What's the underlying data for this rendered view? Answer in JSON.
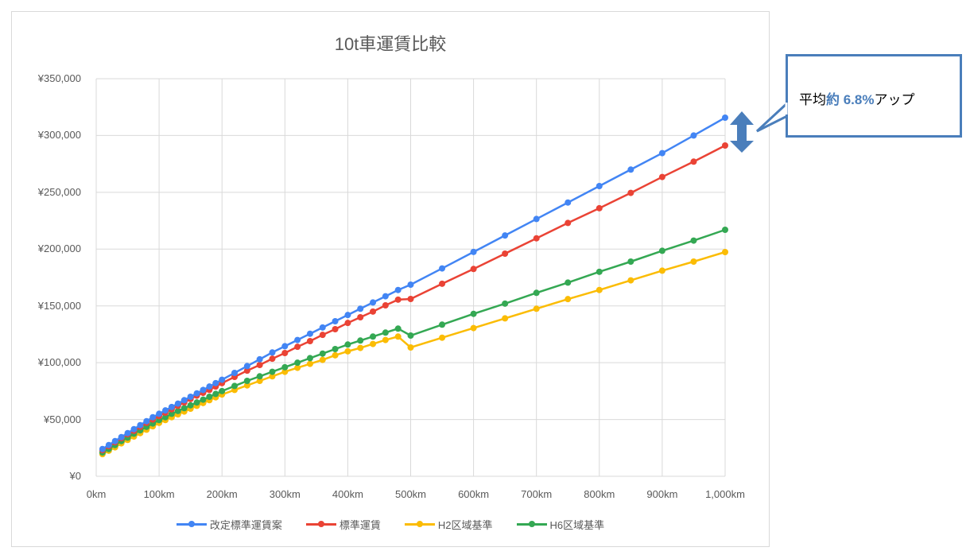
{
  "chart_data": {
    "type": "line",
    "title": "10t車運賃比較",
    "xlabel": "",
    "ylabel": "",
    "xlim": [
      0,
      1000
    ],
    "ylim": [
      0,
      350000
    ],
    "x_tick_labels": [
      "0km",
      "100km",
      "200km",
      "300km",
      "400km",
      "500km",
      "600km",
      "700km",
      "800km",
      "900km",
      "1,000km"
    ],
    "y_tick_labels": [
      "¥0",
      "¥50,000",
      "¥100,000",
      "¥150,000",
      "¥200,000",
      "¥250,000",
      "¥300,000",
      "¥350,000"
    ],
    "grid": true,
    "legend_position": "bottom",
    "x": [
      10,
      20,
      30,
      40,
      50,
      60,
      70,
      80,
      90,
      100,
      110,
      120,
      130,
      140,
      150,
      160,
      170,
      180,
      190,
      200,
      220,
      240,
      260,
      280,
      300,
      320,
      340,
      360,
      380,
      400,
      420,
      440,
      460,
      480,
      500,
      550,
      600,
      650,
      700,
      750,
      800,
      850,
      900,
      950,
      1000
    ],
    "series": [
      {
        "name": "改定標準運賃案",
        "color": "#4285f4",
        "values": [
          24000,
          27500,
          31000,
          34500,
          38000,
          41500,
          45000,
          48500,
          52000,
          55000,
          58000,
          61000,
          64000,
          67000,
          70000,
          73000,
          76000,
          79000,
          82000,
          85000,
          91000,
          97000,
          103000,
          109000,
          114500,
          120000,
          125500,
          131000,
          136500,
          142000,
          147500,
          153000,
          158500,
          164000,
          168700,
          183000,
          197500,
          212000,
          226500,
          241000,
          255500,
          270000,
          284500,
          300000,
          315700
        ]
      },
      {
        "name": "標準運賃",
        "color": "#ea4335",
        "values": [
          23000,
          26500,
          30000,
          33500,
          37000,
          40000,
          43500,
          47000,
          50000,
          53000,
          56000,
          59000,
          62000,
          65000,
          68000,
          71000,
          73500,
          76000,
          79000,
          82000,
          87500,
          93000,
          98000,
          103500,
          108500,
          114000,
          119000,
          124500,
          129500,
          135000,
          140000,
          145000,
          150500,
          155500,
          156100,
          169500,
          182500,
          196000,
          209500,
          223000,
          236000,
          249500,
          263500,
          277000,
          291200
        ]
      },
      {
        "name": "H2区域基準",
        "color": "#fbbc04",
        "values": [
          19500,
          22500,
          25500,
          29000,
          32000,
          35000,
          38000,
          41000,
          44000,
          47000,
          49500,
          52000,
          54500,
          57000,
          59500,
          62000,
          64500,
          67000,
          69500,
          72000,
          76000,
          80000,
          84000,
          88000,
          92000,
          95500,
          99000,
          102500,
          106500,
          110000,
          113000,
          116500,
          120000,
          123000,
          113400,
          122000,
          130500,
          139000,
          147500,
          156000,
          164000,
          172500,
          181000,
          189000,
          197400
        ]
      },
      {
        "name": "H6区域基準",
        "color": "#34a853",
        "values": [
          21000,
          24000,
          27500,
          31000,
          34000,
          37500,
          40500,
          43500,
          46500,
          49500,
          52000,
          55000,
          57500,
          60000,
          62500,
          65000,
          67500,
          70000,
          72500,
          75000,
          79500,
          84000,
          88000,
          92000,
          96000,
          100000,
          104000,
          108000,
          112000,
          116000,
          119500,
          123000,
          126500,
          130000,
          123900,
          133500,
          143000,
          152000,
          161500,
          170500,
          180000,
          189000,
          198500,
          207500,
          217000
        ]
      }
    ],
    "annotation": "平均約 6.8%アップ"
  },
  "chart": {
    "title": "10t車運賃比較",
    "legend": [
      {
        "label": "改定標準運賃案",
        "color": "#4285f4"
      },
      {
        "label": "標準運賃",
        "color": "#ea4335"
      },
      {
        "label": "H2区域基準",
        "color": "#fbbc04"
      },
      {
        "label": "H6区域基準",
        "color": "#34a853"
      }
    ]
  },
  "callout": {
    "prefix": "平均",
    "accent": "約 6.8%",
    "suffix": "アップ",
    "accent_color": "#4a7ebb"
  }
}
